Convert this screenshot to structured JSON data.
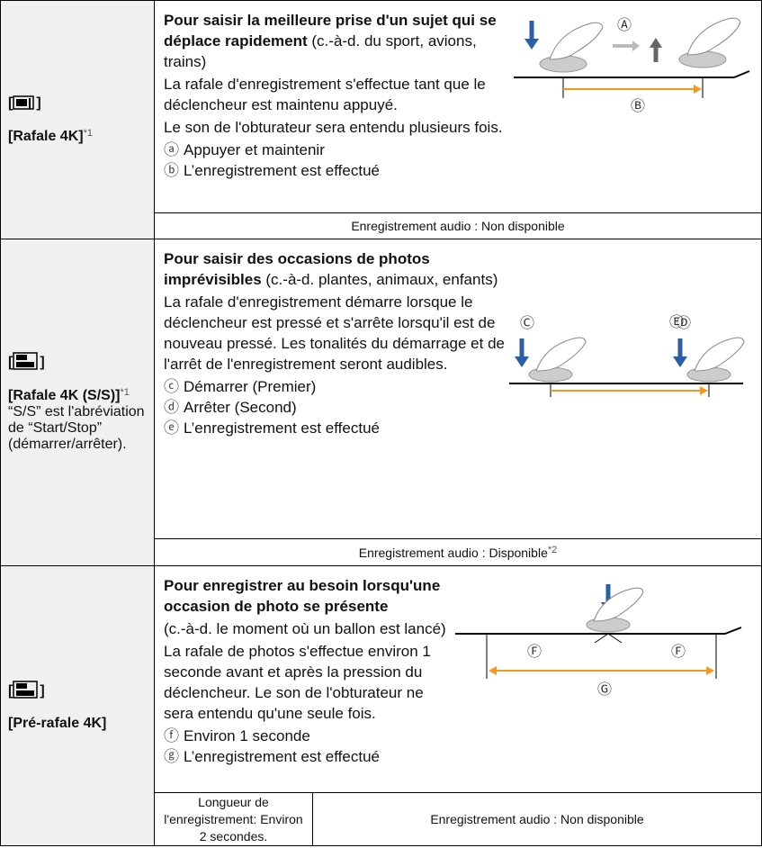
{
  "rows": [
    {
      "icon_open": "[",
      "icon_close": "]",
      "name": "[Rafale 4K]",
      "note": "*1",
      "title": "Pour saisir la meilleure prise d'un sujet qui se déplace rapidement",
      "title_rest": " (c.-à-d. du sport, avions, trains)",
      "paragraphs": [
        "La rafale d'enregistrement s'effectue tant que le déclencheur est maintenu appuyé.",
        "Le son de l'obturateur sera entendu plusieurs fois."
      ],
      "legend": [
        {
          "mark": "ⓐ",
          "text": "Appuyer et maintenir"
        },
        {
          "mark": "ⓑ",
          "text": "L’enregistrement est effectué"
        }
      ],
      "diagram_labels": [
        "Ⓐ",
        "Ⓑ"
      ],
      "footer": [
        {
          "text": "Enregistrement audio : Non disponible"
        }
      ]
    },
    {
      "icon_open": "[",
      "icon_close": "]",
      "name": "[Rafale 4K (S/S)]",
      "note": "*1",
      "extra": "“S/S” est l'abréviation de “Start/Stop” (démarrer/arrêter).",
      "title": "Pour saisir des occasions de photos imprévisibles",
      "title_rest": " (c.-à-d. plantes, animaux, enfants)",
      "paragraphs": [
        "La rafale d'enregistrement démarre lorsque le déclencheur est pressé et s'arrête lorsqu'il est de nouveau pressé. Les tonalités du démarrage et de l'arrêt de l'enregistrement seront audibles."
      ],
      "legend": [
        {
          "mark": "ⓒ",
          "text": "Démarrer (Premier)"
        },
        {
          "mark": "ⓓ",
          "text": "Arrêter (Second)"
        },
        {
          "mark": "ⓔ",
          "text": "L’enregistrement est effectué"
        }
      ],
      "diagram_labels": [
        "Ⓒ",
        "Ⓓ",
        "Ⓔ"
      ],
      "footer": [
        {
          "text": "Enregistrement audio : Disponible",
          "note": "*2"
        }
      ]
    },
    {
      "icon_open": "[",
      "icon_close": "]",
      "name": "[Pré-rafale 4K]",
      "title": "Pour enregistrer au besoin lorsqu'une occasion de photo se présente",
      "title_rest": "",
      "paragraphs": [
        "(c.-à-d. le moment où un ballon est lancé)",
        "La rafale de photos s'effectue environ 1 seconde avant et après la pression du déclencheur. Le son de l'obturateur ne sera entendu qu'une seule fois."
      ],
      "legend": [
        {
          "mark": "ⓕ",
          "text": "Environ 1 seconde"
        },
        {
          "mark": "ⓖ",
          "text": "L’enregistrement est effectué"
        }
      ],
      "diagram_labels": [
        "Ⓕ",
        "Ⓕ",
        "Ⓖ"
      ],
      "footer": [
        {
          "text": "Longueur de l'enregistrement: Environ 2 secondes."
        },
        {
          "text": "Enregistrement audio : Non disponible"
        }
      ]
    }
  ]
}
